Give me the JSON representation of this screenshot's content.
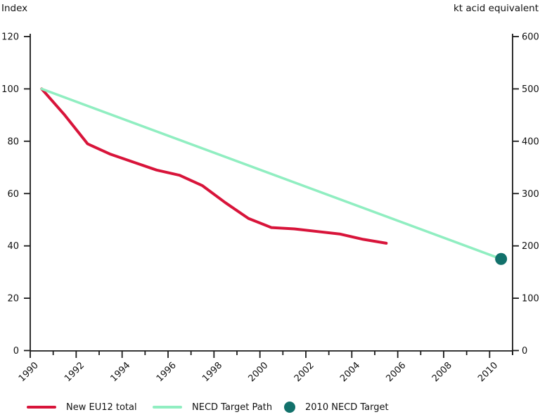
{
  "chart_data": {
    "type": "line",
    "title": "",
    "left_axis": {
      "title": "Index",
      "min": 0,
      "max": 120,
      "ticks": [
        0,
        20,
        40,
        60,
        80,
        100,
        120
      ]
    },
    "right_axis": {
      "title": "kt acid equivalent",
      "min": 0,
      "max": 600,
      "ticks": [
        0,
        100,
        200,
        300,
        400,
        500,
        600
      ]
    },
    "x_axis": {
      "start_year": 1990,
      "end_year": 2010,
      "labeled_years": [
        1990,
        1992,
        1994,
        1996,
        1998,
        2000,
        2002,
        2004,
        2006,
        2008,
        2010
      ]
    },
    "grid": false,
    "legend_position": "bottom",
    "axis_color": "#1a1a1a",
    "series": [
      {
        "name": "New EU12 total",
        "color": "#d8143a",
        "axis": "left",
        "years": [
          1990,
          1991,
          1992,
          1993,
          1994,
          1995,
          1996,
          1997,
          1998,
          1999,
          2000,
          2001,
          2002,
          2003,
          2004,
          2005
        ],
        "values": [
          100,
          90,
          79,
          75,
          72,
          69,
          67,
          63,
          56.5,
          50.5,
          47,
          46.5,
          45.5,
          44.5,
          42.5,
          41
        ]
      },
      {
        "name": "NECD Target Path",
        "color": "#90eec1",
        "axis": "left",
        "years": [
          1990,
          2010
        ],
        "values": [
          100,
          35
        ]
      }
    ],
    "target_point": {
      "name": "2010 NECD Target",
      "color": "#12716b",
      "year": 2010,
      "value_index": 35,
      "value_kt": 175
    },
    "legend": [
      {
        "label": "New EU12 total",
        "marker": "line",
        "color": "#d8143a"
      },
      {
        "label": "NECD Target Path",
        "marker": "line",
        "color": "#90eec1"
      },
      {
        "label": "2010 NECD Target",
        "marker": "dot",
        "color": "#12716b"
      }
    ]
  }
}
